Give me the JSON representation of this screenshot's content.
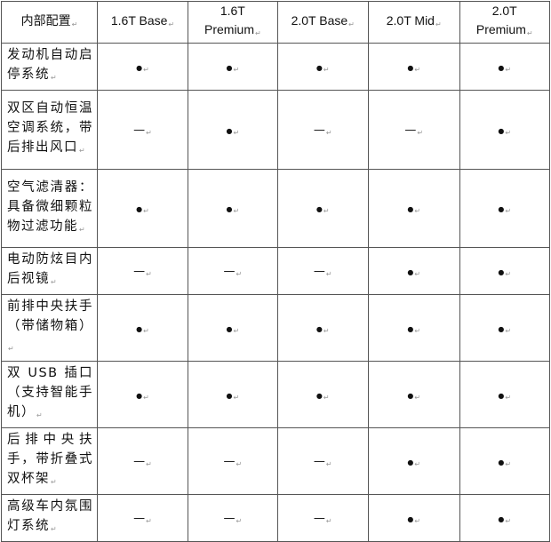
{
  "table": {
    "headers": [
      "内部配置",
      "1.6T Base",
      "1.6T Premium",
      "2.0T Base",
      "2.0T Mid",
      "2.0T Premium"
    ],
    "rows": [
      {
        "feature": "发动机自动启停系统",
        "values": [
          "●",
          "●",
          "●",
          "●",
          "●"
        ]
      },
      {
        "feature": "双区自动恒温空调系统，带后排出风口",
        "values": [
          "—",
          "●",
          "—",
          "—",
          "●"
        ]
      },
      {
        "feature": "空气滤清器：具备微细颗粒物过滤功能",
        "values": [
          "●",
          "●",
          "●",
          "●",
          "●"
        ]
      },
      {
        "feature": "电动防炫目内后视镜",
        "values": [
          "—",
          "—",
          "—",
          "●",
          "●"
        ]
      },
      {
        "feature": "前排中央扶手（带储物箱）",
        "values": [
          "●",
          "●",
          "●",
          "●",
          "●"
        ]
      },
      {
        "feature": "双 USB 插口（支持智能手机）",
        "values": [
          "●",
          "●",
          "●",
          "●",
          "●"
        ]
      },
      {
        "feature": "后排中央扶手，带折叠式双杯架",
        "values": [
          "—",
          "—",
          "—",
          "●",
          "●"
        ]
      },
      {
        "feature": "高级车内氛围灯系统",
        "values": [
          "—",
          "—",
          "—",
          "●",
          "●"
        ]
      }
    ]
  }
}
